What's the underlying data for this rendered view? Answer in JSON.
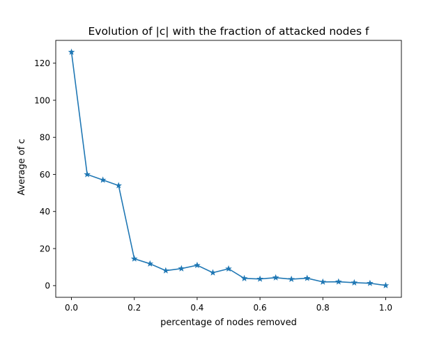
{
  "chart_data": {
    "type": "line",
    "title": "Evolution of |c| with the fraction of attacked nodes f",
    "xlabel": "percentage of nodes removed",
    "ylabel": "Average of c",
    "xlim": [
      -0.05,
      1.05
    ],
    "ylim": [
      -6.3,
      132.3
    ],
    "grid": false,
    "x_ticks": [
      0.0,
      0.2,
      0.4,
      0.6,
      0.8,
      1.0
    ],
    "x_tick_labels": [
      "0.0",
      "0.2",
      "0.4",
      "0.6",
      "0.8",
      "1.0"
    ],
    "y_ticks": [
      0,
      20,
      40,
      60,
      80,
      100,
      120
    ],
    "y_tick_labels": [
      "0",
      "20",
      "40",
      "60",
      "80",
      "100",
      "120"
    ],
    "series": [
      {
        "color": "#1f77b4",
        "marker": "star",
        "x": [
          0.0,
          0.05,
          0.1,
          0.15,
          0.2,
          0.25,
          0.3,
          0.35,
          0.4,
          0.45,
          0.5,
          0.55,
          0.6,
          0.65,
          0.7,
          0.75,
          0.8,
          0.85,
          0.9,
          0.95,
          1.0
        ],
        "y": [
          126,
          60,
          57,
          54,
          14.5,
          11.8,
          8.1,
          9.2,
          11,
          7,
          9.1,
          3.9,
          3.6,
          4.3,
          3.5,
          4,
          2,
          2.1,
          1.6,
          1.3,
          0.1
        ]
      }
    ]
  }
}
